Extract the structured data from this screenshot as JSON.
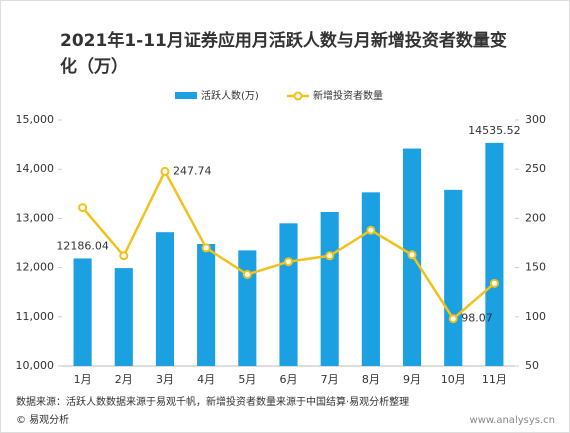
{
  "chart_data": {
    "type": "bar-line",
    "title": "2021年1-11月证券应用月活跃人数与月新增投资者数量变化（万）",
    "categories": [
      "1月",
      "2月",
      "3月",
      "4月",
      "5月",
      "6月",
      "7月",
      "8月",
      "9月",
      "10月",
      "11月"
    ],
    "series": [
      {
        "name": "活跃人数(万)",
        "color": "#1ba1e2",
        "type": "bar",
        "values": [
          12186.04,
          11990,
          12720,
          12480,
          12350,
          12900,
          13130,
          13530,
          14420,
          13580,
          14535.52
        ],
        "value_labels": [
          "12186.04",
          null,
          null,
          null,
          null,
          null,
          null,
          null,
          null,
          null,
          "14535.52"
        ]
      },
      {
        "name": "新增投资者数量",
        "color": "#f2c11a",
        "type": "line",
        "axis": "y2",
        "values": [
          211,
          162,
          247.74,
          170,
          143,
          156,
          162,
          188,
          163,
          98.07,
          134
        ],
        "value_labels": [
          null,
          null,
          "247.74",
          null,
          null,
          null,
          null,
          null,
          null,
          "98.07",
          null
        ]
      }
    ],
    "ylim": [
      10000,
      15000
    ],
    "yticks": [
      {
        "value": 10000,
        "label": "10,000"
      },
      {
        "value": 11000,
        "label": "11,000"
      },
      {
        "value": 12000,
        "label": "12,000"
      },
      {
        "value": 13000,
        "label": "13,000"
      },
      {
        "value": 14000,
        "label": "14,000"
      },
      {
        "value": 15000,
        "label": "15,000"
      }
    ],
    "y2lim": [
      50,
      300
    ],
    "y2ticks": [
      50,
      100,
      150,
      200,
      250,
      300
    ],
    "source": "数据来源：活跃人数数据来源于易观千帆，新增投资者数量来源于中国结算·易观分析整理",
    "footer_left": "© 易观分析",
    "footer_right": "www.analysys.cn"
  }
}
